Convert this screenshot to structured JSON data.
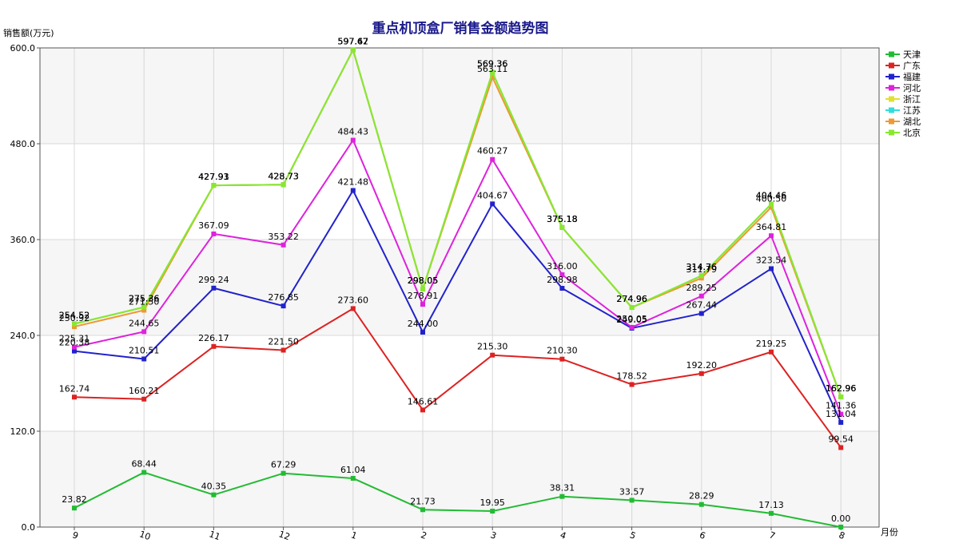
{
  "chart_data": {
    "type": "line",
    "title": "重点机顶盒厂销售金额趋势图",
    "ylabel": "销售额(万元)",
    "xlabel": "月份",
    "ylim": [
      0,
      600
    ],
    "yticks": [
      "0.0",
      "120.0",
      "240.0",
      "360.0",
      "480.0",
      "600.0"
    ],
    "categories": [
      "9",
      "10",
      "11",
      "12",
      "1",
      "2",
      "3",
      "4",
      "5",
      "6",
      "7",
      "8"
    ],
    "legend_position": "right",
    "series": [
      {
        "name": "天津",
        "color": "#22bb33",
        "values": [
          23.82,
          68.44,
          40.35,
          67.29,
          61.04,
          21.73,
          19.95,
          38.31,
          33.57,
          28.29,
          17.13,
          0.0
        ],
        "labels": [
          "23.82",
          "68.44",
          "40.35",
          "67.29",
          "61.04",
          "21.73",
          "19.95",
          "38.31",
          "33.57",
          "28.29",
          "17.13",
          "0.00"
        ]
      },
      {
        "name": "广东",
        "color": "#dd2222",
        "values": [
          162.74,
          160.21,
          226.17,
          221.5,
          273.6,
          146.61,
          215.3,
          210.3,
          178.52,
          192.2,
          219.25,
          99.54
        ],
        "labels": [
          "162.74",
          "160.21",
          "226.17",
          "221.50",
          "273.60",
          "146.61",
          "215.30",
          "210.30",
          "178.52",
          "192.20",
          "219.25",
          "99.54"
        ]
      },
      {
        "name": "福建",
        "color": "#2222cc",
        "values": [
          220.38,
          210.51,
          299.24,
          276.85,
          421.48,
          244.0,
          404.67,
          298.98,
          249.05,
          267.44,
          323.54,
          131.04
        ],
        "labels": [
          "220.38",
          "210.51",
          "299.24",
          "276.85",
          "421.48",
          "244.00",
          "404.67",
          "298.98",
          "249.05",
          "267.44",
          "323.54",
          "131.04"
        ]
      },
      {
        "name": "河北",
        "color": "#dd22dd",
        "values": [
          225.31,
          244.65,
          367.09,
          353.22,
          484.43,
          278.91,
          460.27,
          316.0,
          250.05,
          289.25,
          364.81,
          141.36
        ],
        "labels": [
          "225.31",
          "244.65",
          "367.09",
          "353.22",
          "484.43",
          "278.91",
          "460.27",
          "316.00",
          "250.05",
          "289.25",
          "364.81",
          "141.36"
        ]
      },
      {
        "name": "浙江",
        "color": "#e0e030",
        "values": [
          254.52,
          275.36,
          427.93,
          428.73,
          597.67,
          298.05,
          569.36,
          375.18,
          274.96,
          314.76,
          404.46,
          162.96
        ],
        "labels": [
          "254.52",
          "275.36",
          "427.93",
          "428.73",
          "597.67",
          "298.05",
          "569.36",
          "375.18",
          "274.96",
          "314.76",
          "404.46",
          "162.96"
        ]
      },
      {
        "name": "江苏",
        "color": "#33dddd",
        "values": [
          254.52,
          275.36,
          427.93,
          428.73,
          597.67,
          298.05,
          569.36,
          375.18,
          274.96,
          314.76,
          404.46,
          162.96
        ],
        "labels": [
          "254.52",
          "275.36",
          "427.93",
          "428.73",
          "597.67",
          "298.05",
          "569.36",
          "375.18",
          "274.96",
          "314.76",
          "404.46",
          "162.96"
        ]
      },
      {
        "name": "湖北",
        "color": "#ee9933",
        "values": [
          250.92,
          271.5,
          427.91,
          428.73,
          597.42,
          298.05,
          563.11,
          375.18,
          274.96,
          311.79,
          400.5,
          162.96
        ],
        "labels": [
          "250.92",
          "271.50",
          "427.91",
          "428.73",
          "597.42",
          "298.05",
          "563.11",
          "375.18",
          "274.96",
          "311.79",
          "400.50",
          "162.96"
        ]
      },
      {
        "name": "北京",
        "color": "#88e830",
        "values": [
          254.52,
          275.36,
          427.93,
          428.73,
          597.67,
          298.05,
          569.36,
          375.18,
          274.96,
          314.76,
          404.46,
          162.96
        ],
        "labels": [
          "254.52",
          "275.36",
          "427.93",
          "428.73",
          "597.67",
          "298.05",
          "569.36",
          "375.18",
          "274.96",
          "314.76",
          "404.46",
          "162.96"
        ]
      }
    ]
  }
}
